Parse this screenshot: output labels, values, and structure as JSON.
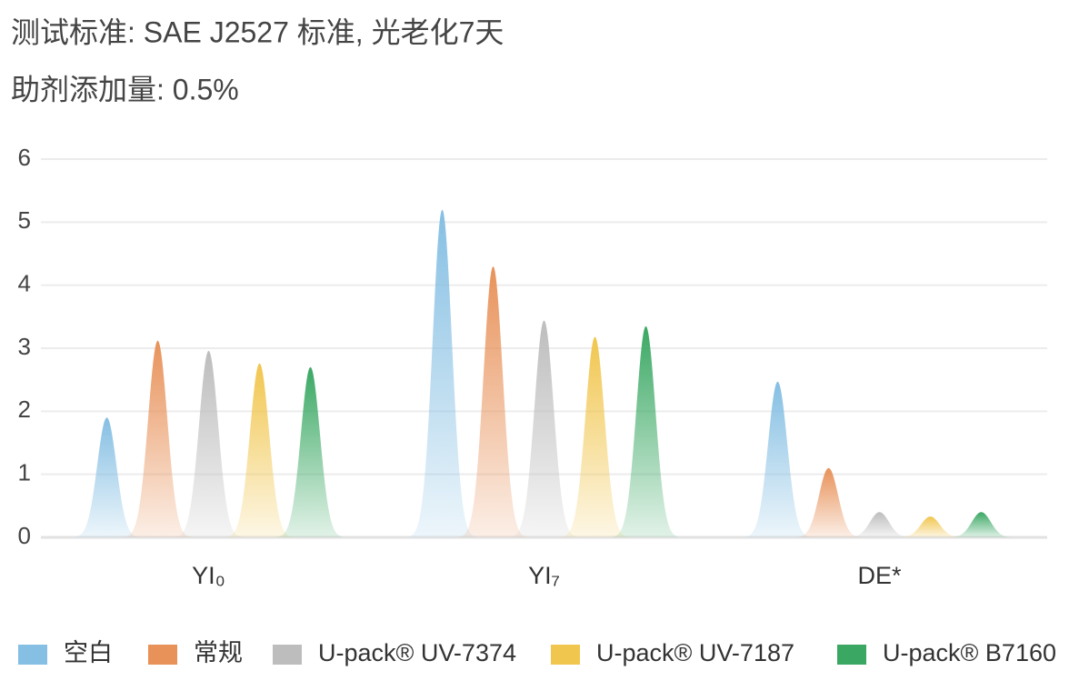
{
  "chart_data": {
    "type": "peak",
    "title": "测试标准: SAE J2527 标准, 光老化7天",
    "subtitle": "助剂添加量: 0.5%",
    "categories": [
      "YI₀",
      "YI₇",
      "DE*"
    ],
    "series": [
      {
        "name": "空白",
        "color": "#85bfe3",
        "values": [
          1.9,
          5.2,
          2.47
        ]
      },
      {
        "name": "常规",
        "color": "#e8925a",
        "values": [
          3.12,
          4.3,
          1.1
        ]
      },
      {
        "name": "U-pack® UV-7374",
        "color": "#bdbdbd",
        "values": [
          2.96,
          3.44,
          0.4
        ]
      },
      {
        "name": "U-pack® UV-7187",
        "color": "#f1c64f",
        "values": [
          2.76,
          3.18,
          0.33
        ]
      },
      {
        "name": "U-pack® B7160",
        "color": "#3aa863",
        "values": [
          2.7,
          3.35,
          0.4
        ]
      }
    ],
    "ylim": [
      0,
      6
    ],
    "yticks": [
      0,
      1,
      2,
      3,
      4,
      5,
      6
    ],
    "grid": true,
    "legend": "bottom"
  }
}
